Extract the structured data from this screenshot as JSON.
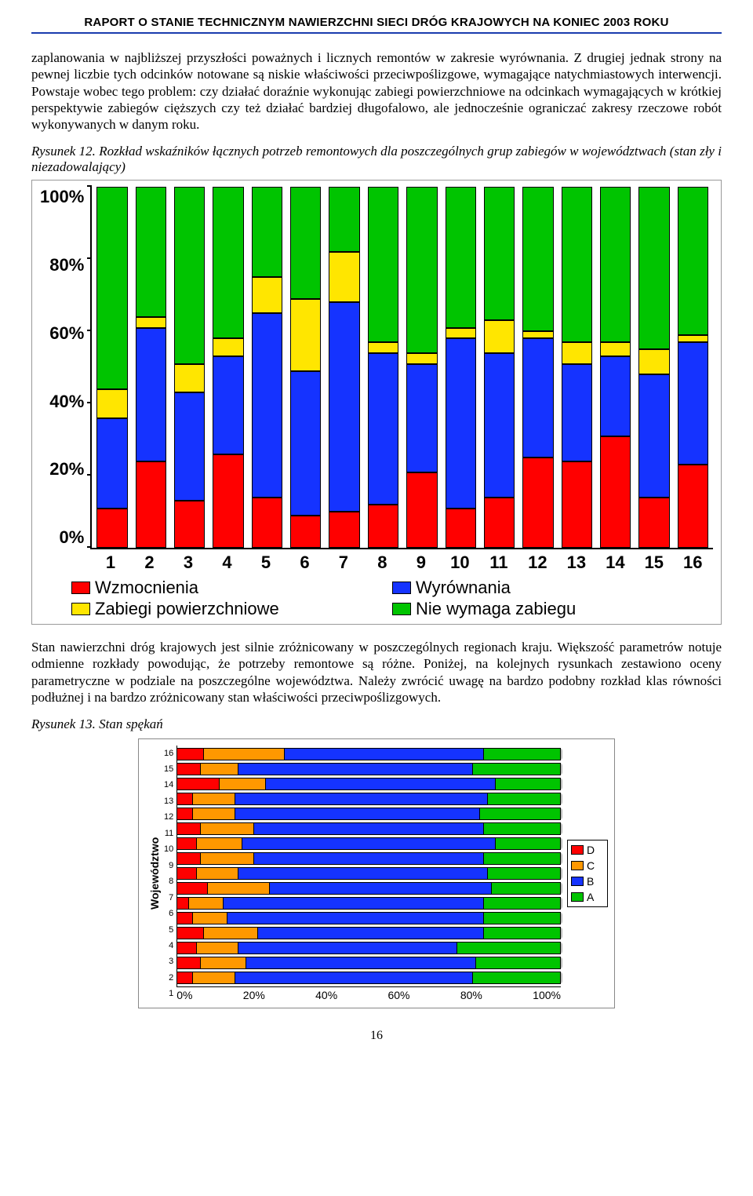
{
  "header": {
    "title": "RAPORT O STANIE TECHNICZNYM NAWIERZCHNI SIECI DRÓG KRAJOWYCH NA KONIEC 2003 ROKU"
  },
  "paragraph1": "zaplanowania w najbliższej przyszłości poważnych i licznych remontów w zakresie wyrównania. Z drugiej jednak strony na pewnej liczbie tych odcinków notowane są niskie właściwości przeciwpoślizgowe, wymagające natychmiastowych interwencji. Powstaje wobec tego problem: czy działać doraźnie wykonując zabiegi powierzchniowe na odcinkach wymagających w krótkiej perspektywie zabiegów cięższych czy też działać bardziej długofalowo, ale jednocześnie ograniczać zakresy rzeczowe robót wykonywanych w danym roku.",
  "fig12": {
    "label": "Rysunek 12.",
    "caption": "Rozkład wskaźników łącznych potrzeb remontowych dla poszczególnych grup zabiegów w województwach (stan zły i niezadowalający)"
  },
  "chart12": {
    "type": "stacked-bar-vertical",
    "ylim": [
      0,
      100
    ],
    "ytick_step": 20,
    "yticks": [
      "100%",
      "80%",
      "60%",
      "40%",
      "20%",
      "0%"
    ],
    "categories": [
      "1",
      "2",
      "3",
      "4",
      "5",
      "6",
      "7",
      "8",
      "9",
      "10",
      "11",
      "12",
      "13",
      "14",
      "15",
      "16"
    ],
    "series_order": [
      "wzmocnienia",
      "wyrownania",
      "zabiegi",
      "nie"
    ],
    "colors": {
      "wzmocnienia": "#ff0000",
      "wyrownania": "#1533ff",
      "zabiegi": "#ffe600",
      "nie": "#00c400"
    },
    "legend": {
      "wzmocnienia": "Wzmocnienia",
      "wyrownania": "Wyrównania",
      "zabiegi": "Zabiegi powierzchniowe",
      "nie": "Nie wymaga zabiegu"
    },
    "data": [
      {
        "wzmocnienia": 11,
        "wyrownania": 25,
        "zabiegi": 8,
        "nie": 56
      },
      {
        "wzmocnienia": 24,
        "wyrownania": 37,
        "zabiegi": 3,
        "nie": 36
      },
      {
        "wzmocnienia": 13,
        "wyrownania": 30,
        "zabiegi": 8,
        "nie": 49
      },
      {
        "wzmocnienia": 26,
        "wyrownania": 27,
        "zabiegi": 5,
        "nie": 42
      },
      {
        "wzmocnienia": 14,
        "wyrownania": 51,
        "zabiegi": 10,
        "nie": 25
      },
      {
        "wzmocnienia": 9,
        "wyrownania": 40,
        "zabiegi": 20,
        "nie": 31
      },
      {
        "wzmocnienia": 10,
        "wyrownania": 58,
        "zabiegi": 14,
        "nie": 18
      },
      {
        "wzmocnienia": 12,
        "wyrownania": 42,
        "zabiegi": 3,
        "nie": 43
      },
      {
        "wzmocnienia": 21,
        "wyrownania": 30,
        "zabiegi": 3,
        "nie": 46
      },
      {
        "wzmocnienia": 11,
        "wyrownania": 47,
        "zabiegi": 3,
        "nie": 39
      },
      {
        "wzmocnienia": 14,
        "wyrownania": 40,
        "zabiegi": 9,
        "nie": 37
      },
      {
        "wzmocnienia": 25,
        "wyrownania": 33,
        "zabiegi": 2,
        "nie": 40
      },
      {
        "wzmocnienia": 24,
        "wyrownania": 27,
        "zabiegi": 6,
        "nie": 43
      },
      {
        "wzmocnienia": 31,
        "wyrownania": 22,
        "zabiegi": 4,
        "nie": 43
      },
      {
        "wzmocnienia": 14,
        "wyrownania": 34,
        "zabiegi": 7,
        "nie": 45
      },
      {
        "wzmocnienia": 23,
        "wyrownania": 34,
        "zabiegi": 2,
        "nie": 41
      }
    ]
  },
  "paragraph2": "Stan nawierzchni dróg krajowych jest silnie zróżnicowany w poszczególnych regionach kraju. Większość parametrów notuje odmienne rozkłady powodując, że potrzeby remontowe są różne. Poniżej, na kolejnych rysunkach zestawiono oceny parametryczne w podziale na poszczególne województwa. Należy zwrócić uwagę na bardzo podobny rozkład klas równości podłużnej i na bardzo zróżnicowany stan właściwości przeciwpoślizgowych.",
  "fig13": {
    "label": "Rysunek 13.",
    "caption": "Stan spękań"
  },
  "chart13": {
    "type": "stacked-bar-horizontal",
    "ylabel": "Województwo",
    "xlim": [
      0,
      100
    ],
    "xticks": [
      "0%",
      "20%",
      "40%",
      "60%",
      "80%",
      "100%"
    ],
    "categories": [
      "16",
      "15",
      "14",
      "13",
      "12",
      "11",
      "10",
      "9",
      "8",
      "7",
      "6",
      "5",
      "4",
      "3",
      "2",
      "1"
    ],
    "series_order": [
      "D",
      "C",
      "B",
      "A"
    ],
    "colors": {
      "D": "#ff0000",
      "C": "#ff9800",
      "B": "#1533ff",
      "A": "#00c400"
    },
    "legend_order": [
      "D",
      "C",
      "B",
      "A"
    ],
    "legend": {
      "D": "D",
      "C": "C",
      "B": "B",
      "A": "A"
    },
    "data": {
      "16": {
        "D": 7,
        "C": 21,
        "B": 52,
        "A": 20
      },
      "15": {
        "D": 6,
        "C": 10,
        "B": 61,
        "A": 23
      },
      "14": {
        "D": 11,
        "C": 12,
        "B": 60,
        "A": 17
      },
      "13": {
        "D": 4,
        "C": 11,
        "B": 66,
        "A": 19
      },
      "12": {
        "D": 4,
        "C": 11,
        "B": 64,
        "A": 21
      },
      "11": {
        "D": 6,
        "C": 14,
        "B": 60,
        "A": 20
      },
      "10": {
        "D": 5,
        "C": 12,
        "B": 66,
        "A": 17
      },
      "9": {
        "D": 6,
        "C": 14,
        "B": 60,
        "A": 20
      },
      "8": {
        "D": 5,
        "C": 11,
        "B": 65,
        "A": 19
      },
      "7": {
        "D": 8,
        "C": 16,
        "B": 58,
        "A": 18
      },
      "6": {
        "D": 3,
        "C": 9,
        "B": 68,
        "A": 20
      },
      "5": {
        "D": 4,
        "C": 9,
        "B": 67,
        "A": 20
      },
      "4": {
        "D": 7,
        "C": 14,
        "B": 59,
        "A": 20
      },
      "3": {
        "D": 5,
        "C": 11,
        "B": 57,
        "A": 27
      },
      "2": {
        "D": 6,
        "C": 12,
        "B": 60,
        "A": 22
      },
      "1": {
        "D": 4,
        "C": 11,
        "B": 62,
        "A": 23
      }
    }
  },
  "pageNumber": "16"
}
